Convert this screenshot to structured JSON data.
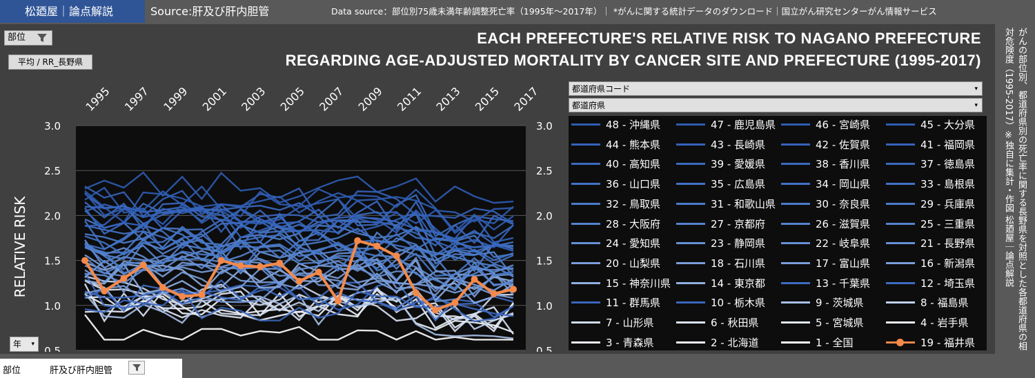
{
  "header": {
    "brand": "松廼屋｜論点解説",
    "source": "Source:肝及び肝内胆管",
    "data_source": "Data source：部位別75歳未満年齢調整死亡率（1995年～2017年）｜ *がんに関する統計データのダウンロード｜国立がん研究センターがん情報サービス"
  },
  "title_line1": "EACH PREFECTURE'S RELATIVE RISK TO NAGANO PREFECTURE",
  "title_line2": "REGARDING AGE-ADJUSTED MORTALITY BY CANCER SITE AND PREFECTURE (1995-2017)",
  "vertical_caption": "がんの部位別、都道府県別の死亡率に関する長野県を対照とした各都道府県の相対危険度（1995-2017）※独自に集計・作図 松廼屋｜論点解説",
  "filters": {
    "site_button": "部位",
    "measure_button": "平均 / RR_長野県",
    "year_button": "年",
    "pref_code_dropdown": "都道府県コード",
    "pref_dropdown": "都道府県"
  },
  "bottom": {
    "label": "部位",
    "value": "肝及び肝内胆管"
  },
  "colors": {
    "highlight": "#f4894a",
    "background": "#404040",
    "plot": "#0d0d0d"
  },
  "chart_data": {
    "type": "line",
    "ylabel": "RELATIVE RISK",
    "ylim": [
      0.5,
      3.0
    ],
    "yticks": [
      "3.0",
      "2.5",
      "2.0",
      "1.5",
      "1.0",
      "0.5"
    ],
    "x_tick_labels": [
      "1995",
      "1997",
      "1999",
      "2001",
      "2003",
      "2005",
      "2007",
      "2009",
      "2011",
      "2013",
      "2015",
      "2017"
    ],
    "x": [
      1995,
      1996,
      1997,
      1998,
      1999,
      2000,
      2001,
      2002,
      2003,
      2004,
      2005,
      2006,
      2007,
      2008,
      2009,
      2010,
      2011,
      2012,
      2013,
      2014,
      2015,
      2016,
      2017
    ],
    "highlight_series": {
      "name": "19 - 福井県",
      "values": [
        1.5,
        1.16,
        1.3,
        1.45,
        1.2,
        1.1,
        1.12,
        1.5,
        1.44,
        1.43,
        1.47,
        1.27,
        1.37,
        1.05,
        1.72,
        1.66,
        1.55,
        1.14,
        0.95,
        1.03,
        1.29,
        1.13,
        1.18
      ]
    },
    "legend": [
      "48 - 沖縄県",
      "47 - 鹿児島県",
      "46 - 宮崎県",
      "45 - 大分県",
      "44 - 熊本県",
      "43 - 長崎県",
      "42 - 佐賀県",
      "41 - 福岡県",
      "40 - 高知県",
      "39 - 愛媛県",
      "38 - 香川県",
      "37 - 徳島県",
      "36 - 山口県",
      "35 - 広島県",
      "34 - 岡山県",
      "33 - 島根県",
      "32 - 鳥取県",
      "31 - 和歌山県",
      "30 - 奈良県",
      "29 - 兵庫県",
      "28 - 大阪府",
      "27 - 京都府",
      "26 - 滋賀県",
      "25 - 三重県",
      "24 - 愛知県",
      "23 - 静岡県",
      "22 - 岐阜県",
      "21 - 長野県",
      "20 - 山梨県",
      "18 - 石川県",
      "17 - 富山県",
      "16 - 新潟県",
      "15 - 神奈川県",
      "14 - 東京都",
      "13 - 千葉県",
      "12 - 埼玉県",
      "11 - 群馬県",
      "10 - 栃木県",
      "9 - 茨城県",
      "8 - 福島県",
      "7 - 山形県",
      "6 - 秋田県",
      "5 - 宮城県",
      "4 - 岩手県",
      "3 - 青森県",
      "2 - 北海道",
      "1 - 全国",
      "19 - 福井県"
    ],
    "legend_colors": [
      "#2f5cb3",
      "#2f5cb3",
      "#2f5cb3",
      "#2f5cb3",
      "#3563bb",
      "#3563bb",
      "#3563bb",
      "#3563bb",
      "#3b6ac0",
      "#3b6ac0",
      "#3b6ac0",
      "#3b6ac0",
      "#4272c6",
      "#4272c6",
      "#4272c6",
      "#4272c6",
      "#4a7bcb",
      "#4a7bcb",
      "#4a7bcb",
      "#4a7bcb",
      "#5584d0",
      "#5584d0",
      "#5584d0",
      "#5584d0",
      "#6690d6",
      "#6690d6",
      "#6690d6",
      "#6690d6",
      "#7a9edb",
      "#7a9edb",
      "#7a9edb",
      "#7a9edb",
      "#90b0e2",
      "#90b0e2",
      "#3f6cc2",
      "#3f6cc2",
      "#3a66bd",
      "#3a66bd",
      "#a8c0e8",
      "#c0d2ee",
      "#d0ddf2",
      "#dbe4f5",
      "#e3eaf7",
      "#eaf0fa",
      "#eef2fb",
      "#f3f6fc",
      "#ffffff",
      "#f4894a"
    ]
  }
}
